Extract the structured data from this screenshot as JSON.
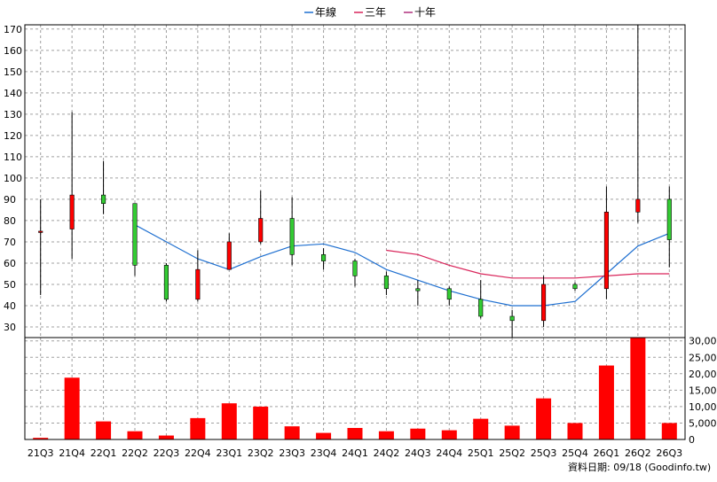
{
  "legend": [
    {
      "name": "年線",
      "color": "#1e6fd0"
    },
    {
      "name": "三年",
      "color": "#d9245a"
    },
    {
      "name": "十年",
      "color": "#b0307e"
    }
  ],
  "source_text": "資料日期: 09/18  (Goodinfo.tw)",
  "chart_data": [
    {
      "type": "candlestick",
      "categories": [
        "21Q3",
        "21Q4",
        "22Q1",
        "22Q2",
        "22Q3",
        "22Q4",
        "23Q1",
        "23Q2",
        "23Q3",
        "23Q4",
        "24Q1",
        "24Q2",
        "24Q3",
        "24Q4",
        "25Q1",
        "25Q2",
        "25Q3",
        "25Q4",
        "26Q1",
        "26Q2",
        "26Q3"
      ],
      "ylim": [
        25,
        172
      ],
      "yticks": [
        30,
        40,
        50,
        60,
        70,
        80,
        90,
        100,
        110,
        120,
        130,
        140,
        150,
        160,
        170
      ],
      "grid": true,
      "legend_position": "top-center",
      "up_color": "#ff0000",
      "down_color": "#33cc33",
      "ohlc": [
        {
          "o": 75,
          "h": 90,
          "l": 45,
          "c": 75
        },
        {
          "o": 76,
          "h": 131,
          "l": 62,
          "c": 92
        },
        {
          "o": 92,
          "h": 108,
          "l": 83,
          "c": 88
        },
        {
          "o": 88,
          "h": 88,
          "l": 54,
          "c": 59
        },
        {
          "o": 59,
          "h": 60,
          "l": 42,
          "c": 43
        },
        {
          "o": 43,
          "h": 66,
          "l": 42,
          "c": 57
        },
        {
          "o": 57,
          "h": 74,
          "l": 57,
          "c": 70
        },
        {
          "o": 70,
          "h": 94,
          "l": 69,
          "c": 81
        },
        {
          "o": 81,
          "h": 91,
          "l": 59,
          "c": 64
        },
        {
          "o": 64,
          "h": 67,
          "l": 57,
          "c": 61
        },
        {
          "o": 61,
          "h": 62,
          "l": 49,
          "c": 54
        },
        {
          "o": 54,
          "h": 56,
          "l": 45,
          "c": 48
        },
        {
          "o": 48,
          "h": 52,
          "l": 40,
          "c": 47
        },
        {
          "o": 48,
          "h": 49,
          "l": 40,
          "c": 43
        },
        {
          "o": 43,
          "h": 52,
          "l": 34,
          "c": 35
        },
        {
          "o": 35,
          "h": 38,
          "l": 25,
          "c": 33
        },
        {
          "o": 33,
          "h": 54,
          "l": 30,
          "c": 50
        },
        {
          "o": 50,
          "h": 51,
          "l": 47,
          "c": 48
        },
        {
          "o": 48,
          "h": 96,
          "l": 43,
          "c": 84
        },
        {
          "o": 84,
          "h": 172,
          "l": 79,
          "c": 90
        },
        {
          "o": 90,
          "h": 96,
          "l": 58,
          "c": 71
        }
      ],
      "series": [
        {
          "name": "年線",
          "values": [
            null,
            null,
            null,
            78,
            70,
            62,
            57,
            63,
            68,
            69,
            65,
            57,
            52,
            47,
            43,
            40,
            40,
            42,
            55,
            68,
            74
          ]
        },
        {
          "name": "三年",
          "values": [
            null,
            null,
            null,
            null,
            null,
            null,
            null,
            null,
            null,
            null,
            null,
            66,
            64,
            59,
            55,
            53,
            53,
            53,
            54,
            55,
            55
          ]
        },
        {
          "name": "十年",
          "values": [
            null,
            null,
            null,
            null,
            null,
            null,
            null,
            null,
            null,
            null,
            null,
            null,
            null,
            null,
            null,
            null,
            null,
            null,
            null,
            null,
            null
          ]
        }
      ]
    },
    {
      "type": "bar",
      "categories": [
        "21Q3",
        "21Q4",
        "22Q1",
        "22Q2",
        "22Q3",
        "22Q4",
        "23Q1",
        "23Q2",
        "23Q3",
        "23Q4",
        "24Q1",
        "24Q2",
        "24Q3",
        "24Q4",
        "25Q1",
        "25Q2",
        "25Q3",
        "25Q4",
        "26Q1",
        "26Q2",
        "26Q3"
      ],
      "values": [
        500,
        18800,
        5500,
        2500,
        1200,
        6500,
        11000,
        10000,
        4000,
        2000,
        3500,
        2500,
        3300,
        2800,
        6300,
        4200,
        12500,
        5000,
        22500,
        31000,
        5000
      ],
      "ylim": [
        0,
        31000
      ],
      "yticks": [
        "0",
        "5,000",
        "10,000",
        "15,000",
        "20,000",
        "25,000",
        "30,000"
      ],
      "ytick_values": [
        0,
        5000,
        10000,
        15000,
        20000,
        25000,
        30000
      ],
      "grid": true,
      "bar_color": "#ff0000"
    }
  ]
}
